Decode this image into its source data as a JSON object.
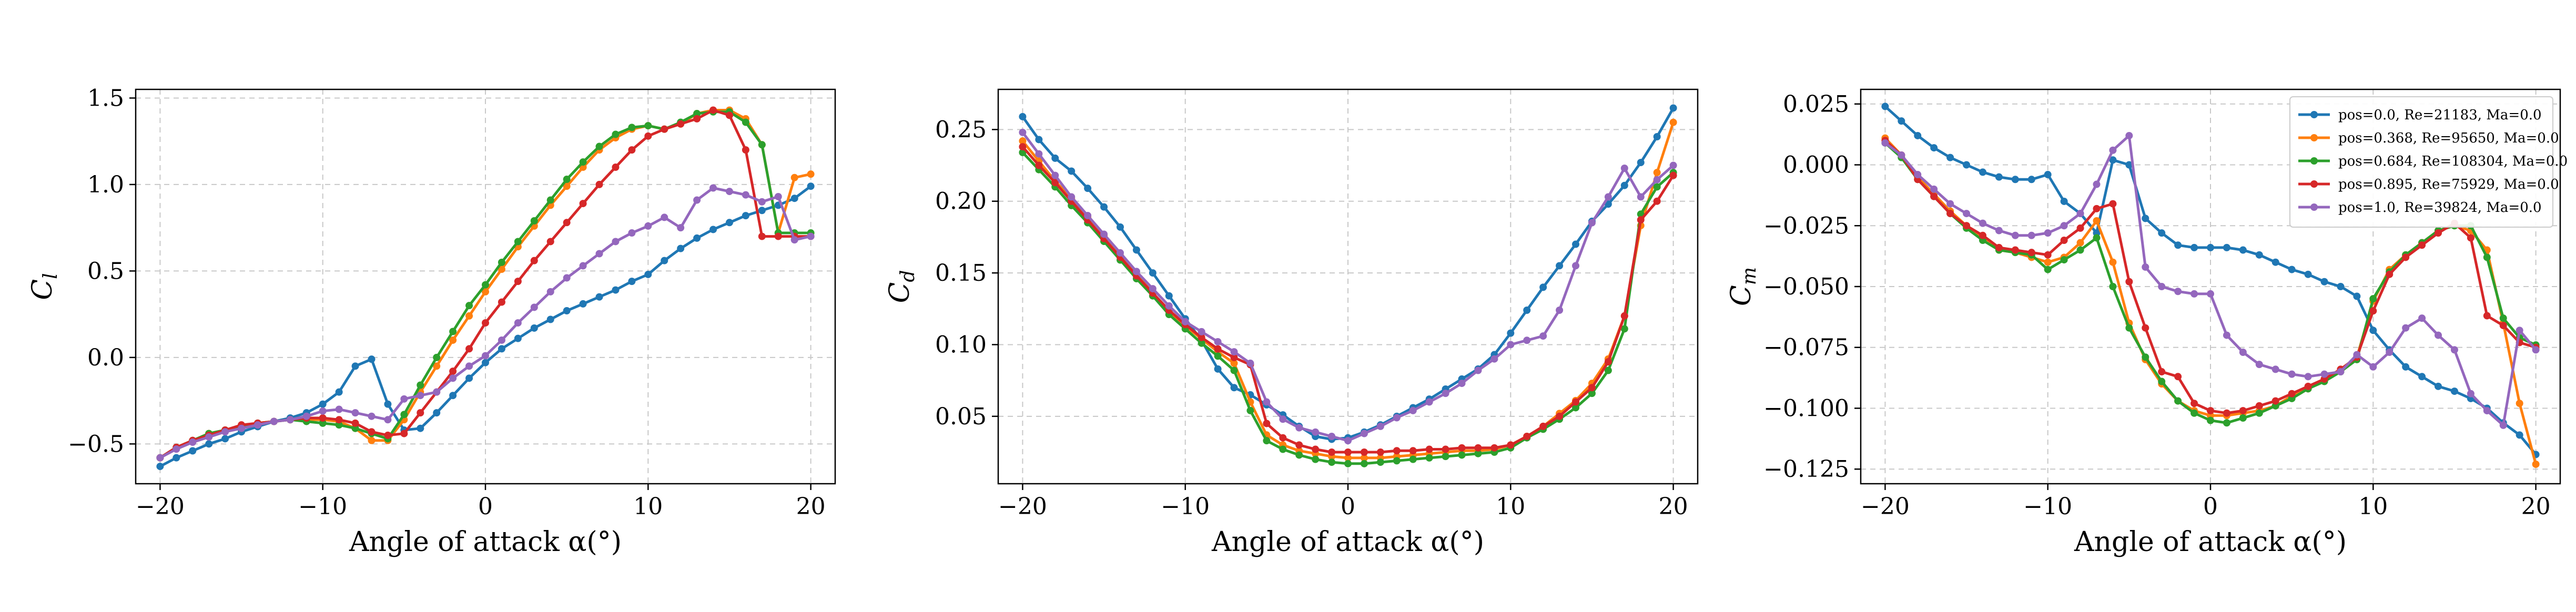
{
  "figure": {
    "colors": {
      "pos=0.0": "#1f77b4",
      "pos=0.368": "#ff7f0e",
      "pos=0.684": "#2ca02c",
      "pos=0.895": "#d62728",
      "pos=1.0": "#9467bd",
      "grid": "#c8c8c8"
    }
  },
  "chart_data": [
    {
      "type": "line",
      "xlabel": "Angle of attack α(°)",
      "ylabel": "C_l",
      "xlim": [
        -21.5,
        21.5
      ],
      "ylim": [
        -0.73,
        1.55
      ],
      "xticks": [
        -20,
        -10,
        0,
        10,
        20
      ],
      "xtick_labels": [
        "−20",
        "−10",
        "0",
        "10",
        "20"
      ],
      "yticks": [
        -0.5,
        0.0,
        0.5,
        1.0,
        1.5
      ],
      "ytick_labels": [
        "−0.5",
        "0.0",
        "0.5",
        "1.0",
        "1.5"
      ],
      "grid": true,
      "legend": "none",
      "x": [
        -20,
        -19,
        -18,
        -17,
        -16,
        -15,
        -14,
        -13,
        -12,
        -11,
        -10,
        -9,
        -8,
        -7,
        -6,
        -5,
        -4,
        -3,
        -2,
        -1,
        0,
        1,
        2,
        3,
        4,
        5,
        6,
        7,
        8,
        9,
        10,
        11,
        12,
        13,
        14,
        15,
        16,
        17,
        18,
        19,
        20
      ],
      "series": [
        {
          "key": "pos=0.0",
          "values": [
            -0.63,
            -0.58,
            -0.54,
            -0.5,
            -0.47,
            -0.43,
            -0.4,
            -0.37,
            -0.35,
            -0.32,
            -0.27,
            -0.2,
            -0.05,
            -0.01,
            -0.27,
            -0.42,
            -0.41,
            -0.32,
            -0.22,
            -0.12,
            -0.03,
            0.05,
            0.11,
            0.17,
            0.22,
            0.27,
            0.31,
            0.35,
            0.39,
            0.44,
            0.48,
            0.56,
            0.63,
            0.69,
            0.74,
            0.78,
            0.82,
            0.85,
            0.88,
            0.92,
            0.99
          ]
        },
        {
          "key": "pos=0.368",
          "values": [
            -0.58,
            -0.52,
            -0.48,
            -0.44,
            -0.42,
            -0.4,
            -0.38,
            -0.37,
            -0.36,
            -0.36,
            -0.36,
            -0.37,
            -0.41,
            -0.48,
            -0.48,
            -0.36,
            -0.2,
            -0.05,
            0.1,
            0.24,
            0.38,
            0.51,
            0.64,
            0.76,
            0.88,
            0.99,
            1.1,
            1.2,
            1.27,
            1.32,
            1.34,
            1.32,
            1.35,
            1.41,
            1.43,
            1.43,
            1.38,
            1.23,
            0.72,
            1.04,
            1.06
          ]
        },
        {
          "key": "pos=0.684",
          "values": [
            -0.58,
            -0.52,
            -0.48,
            -0.44,
            -0.42,
            -0.4,
            -0.38,
            -0.37,
            -0.36,
            -0.37,
            -0.38,
            -0.39,
            -0.41,
            -0.44,
            -0.47,
            -0.33,
            -0.16,
            0.0,
            0.15,
            0.3,
            0.42,
            0.55,
            0.67,
            0.79,
            0.91,
            1.03,
            1.13,
            1.22,
            1.29,
            1.33,
            1.34,
            1.32,
            1.36,
            1.41,
            1.42,
            1.42,
            1.36,
            1.23,
            0.72,
            0.72,
            0.72
          ]
        },
        {
          "key": "pos=0.895",
          "values": [
            -0.58,
            -0.52,
            -0.48,
            -0.45,
            -0.42,
            -0.39,
            -0.38,
            -0.37,
            -0.36,
            -0.35,
            -0.35,
            -0.36,
            -0.38,
            -0.43,
            -0.45,
            -0.44,
            -0.32,
            -0.2,
            -0.08,
            0.05,
            0.2,
            0.32,
            0.44,
            0.56,
            0.67,
            0.78,
            0.89,
            1.0,
            1.1,
            1.2,
            1.28,
            1.32,
            1.35,
            1.38,
            1.43,
            1.4,
            1.2,
            0.7,
            0.7,
            0.7,
            0.7
          ]
        },
        {
          "key": "pos=1.0",
          "values": [
            -0.58,
            -0.53,
            -0.49,
            -0.46,
            -0.43,
            -0.41,
            -0.39,
            -0.37,
            -0.36,
            -0.34,
            -0.31,
            -0.3,
            -0.32,
            -0.34,
            -0.36,
            -0.24,
            -0.22,
            -0.2,
            -0.12,
            -0.05,
            0.01,
            0.1,
            0.2,
            0.29,
            0.38,
            0.46,
            0.53,
            0.6,
            0.67,
            0.72,
            0.76,
            0.81,
            0.75,
            0.91,
            0.98,
            0.96,
            0.94,
            0.9,
            0.93,
            0.68,
            0.7
          ]
        }
      ]
    },
    {
      "type": "line",
      "xlabel": "Angle of attack α(°)",
      "ylabel": "C_d",
      "xlim": [
        -21.5,
        21.5
      ],
      "ylim": [
        0.003,
        0.278
      ],
      "xticks": [
        -20,
        -10,
        0,
        10,
        20
      ],
      "xtick_labels": [
        "−20",
        "−10",
        "0",
        "10",
        "20"
      ],
      "yticks": [
        0.05,
        0.1,
        0.15,
        0.2,
        0.25
      ],
      "ytick_labels": [
        "0.05",
        "0.10",
        "0.15",
        "0.20",
        "0.25"
      ],
      "grid": true,
      "legend": "none",
      "x": [
        -20,
        -19,
        -18,
        -17,
        -16,
        -15,
        -14,
        -13,
        -12,
        -11,
        -10,
        -9,
        -8,
        -7,
        -6,
        -5,
        -4,
        -3,
        -2,
        -1,
        0,
        1,
        2,
        3,
        4,
        5,
        6,
        7,
        8,
        9,
        10,
        11,
        12,
        13,
        14,
        15,
        16,
        17,
        18,
        19,
        20
      ],
      "series": [
        {
          "key": "pos=0.0",
          "values": [
            0.259,
            0.243,
            0.23,
            0.221,
            0.209,
            0.196,
            0.182,
            0.166,
            0.15,
            0.134,
            0.118,
            0.103,
            0.083,
            0.07,
            0.065,
            0.058,
            0.051,
            0.043,
            0.036,
            0.034,
            0.035,
            0.039,
            0.044,
            0.05,
            0.056,
            0.062,
            0.069,
            0.076,
            0.083,
            0.093,
            0.108,
            0.124,
            0.14,
            0.155,
            0.17,
            0.186,
            0.198,
            0.211,
            0.227,
            0.245,
            0.265
          ]
        },
        {
          "key": "pos=0.368",
          "values": [
            0.242,
            0.228,
            0.214,
            0.202,
            0.189,
            0.176,
            0.162,
            0.149,
            0.136,
            0.123,
            0.113,
            0.104,
            0.095,
            0.087,
            0.06,
            0.037,
            0.03,
            0.026,
            0.024,
            0.022,
            0.021,
            0.021,
            0.021,
            0.022,
            0.023,
            0.024,
            0.025,
            0.026,
            0.026,
            0.027,
            0.03,
            0.036,
            0.043,
            0.052,
            0.061,
            0.073,
            0.09,
            0.12,
            0.183,
            0.22,
            0.255
          ]
        },
        {
          "key": "pos=0.684",
          "values": [
            0.234,
            0.222,
            0.21,
            0.197,
            0.185,
            0.172,
            0.159,
            0.146,
            0.134,
            0.121,
            0.111,
            0.101,
            0.092,
            0.082,
            0.054,
            0.033,
            0.027,
            0.023,
            0.02,
            0.018,
            0.017,
            0.017,
            0.018,
            0.019,
            0.02,
            0.021,
            0.022,
            0.023,
            0.024,
            0.025,
            0.028,
            0.035,
            0.041,
            0.048,
            0.056,
            0.066,
            0.082,
            0.111,
            0.191,
            0.21,
            0.22
          ]
        },
        {
          "key": "pos=0.895",
          "values": [
            0.238,
            0.225,
            0.213,
            0.2,
            0.187,
            0.174,
            0.161,
            0.148,
            0.136,
            0.124,
            0.114,
            0.105,
            0.097,
            0.091,
            0.086,
            0.045,
            0.035,
            0.03,
            0.027,
            0.025,
            0.025,
            0.025,
            0.025,
            0.026,
            0.026,
            0.027,
            0.027,
            0.028,
            0.028,
            0.028,
            0.03,
            0.036,
            0.043,
            0.05,
            0.06,
            0.07,
            0.088,
            0.12,
            0.187,
            0.2,
            0.218
          ]
        },
        {
          "key": "pos=1.0",
          "values": [
            0.248,
            0.233,
            0.218,
            0.203,
            0.19,
            0.177,
            0.164,
            0.151,
            0.139,
            0.127,
            0.116,
            0.109,
            0.102,
            0.095,
            0.087,
            0.06,
            0.048,
            0.042,
            0.039,
            0.036,
            0.033,
            0.038,
            0.043,
            0.049,
            0.054,
            0.06,
            0.066,
            0.073,
            0.082,
            0.09,
            0.1,
            0.103,
            0.106,
            0.124,
            0.155,
            0.185,
            0.203,
            0.223,
            0.203,
            0.215,
            0.225
          ]
        }
      ]
    },
    {
      "type": "line",
      "xlabel": "Angle of attack α(°)",
      "ylabel": "C_m",
      "xlim": [
        -21.5,
        21.5
      ],
      "ylim": [
        -0.131,
        0.031
      ],
      "xticks": [
        -20,
        -10,
        0,
        10,
        20
      ],
      "xtick_labels": [
        "−20",
        "−10",
        "0",
        "10",
        "20"
      ],
      "yticks": [
        0.025,
        0.0,
        -0.025,
        -0.05,
        -0.075,
        -0.1,
        -0.125
      ],
      "ytick_labels": [
        "0.025",
        "0.000",
        "−0.025",
        "−0.050",
        "−0.075",
        "−0.100",
        "−0.125"
      ],
      "grid": true,
      "legend": "top-right",
      "x": [
        -20,
        -19,
        -18,
        -17,
        -16,
        -15,
        -14,
        -13,
        -12,
        -11,
        -10,
        -9,
        -8,
        -7,
        -6,
        -5,
        -4,
        -3,
        -2,
        -1,
        0,
        1,
        2,
        3,
        4,
        5,
        6,
        7,
        8,
        9,
        10,
        11,
        12,
        13,
        14,
        15,
        16,
        17,
        18,
        19,
        20
      ],
      "series": [
        {
          "key": "pos=0.0",
          "name": "pos=0.0, Re=21183, Ma=0.0",
          "values": [
            0.024,
            0.018,
            0.012,
            0.007,
            0.003,
            0.0,
            -0.003,
            -0.005,
            -0.006,
            -0.006,
            -0.004,
            -0.015,
            -0.02,
            -0.028,
            0.002,
            0.0,
            -0.022,
            -0.028,
            -0.033,
            -0.034,
            -0.034,
            -0.034,
            -0.035,
            -0.037,
            -0.04,
            -0.043,
            -0.045,
            -0.048,
            -0.05,
            -0.054,
            -0.068,
            -0.076,
            -0.083,
            -0.087,
            -0.091,
            -0.093,
            -0.096,
            -0.1,
            -0.106,
            -0.111,
            -0.119
          ]
        },
        {
          "key": "pos=0.368",
          "name": "pos=0.368, Re=95650, Ma=0.0",
          "values": [
            0.011,
            0.004,
            -0.005,
            -0.012,
            -0.019,
            -0.025,
            -0.03,
            -0.035,
            -0.036,
            -0.038,
            -0.04,
            -0.038,
            -0.032,
            -0.023,
            -0.04,
            -0.065,
            -0.08,
            -0.09,
            -0.097,
            -0.101,
            -0.103,
            -0.103,
            -0.102,
            -0.101,
            -0.099,
            -0.095,
            -0.092,
            -0.088,
            -0.084,
            -0.079,
            -0.056,
            -0.043,
            -0.037,
            -0.032,
            -0.027,
            -0.025,
            -0.027,
            -0.035,
            -0.065,
            -0.098,
            -0.123
          ]
        },
        {
          "key": "pos=0.684",
          "name": "pos=0.684, Re=108304, Ma=0.0",
          "values": [
            0.009,
            0.003,
            -0.006,
            -0.013,
            -0.02,
            -0.026,
            -0.031,
            -0.035,
            -0.036,
            -0.037,
            -0.043,
            -0.039,
            -0.035,
            -0.03,
            -0.05,
            -0.067,
            -0.079,
            -0.089,
            -0.097,
            -0.102,
            -0.105,
            -0.106,
            -0.104,
            -0.102,
            -0.099,
            -0.096,
            -0.092,
            -0.089,
            -0.085,
            -0.08,
            -0.055,
            -0.044,
            -0.037,
            -0.032,
            -0.027,
            -0.025,
            -0.025,
            -0.038,
            -0.063,
            -0.071,
            -0.074
          ]
        },
        {
          "key": "pos=0.895",
          "name": "pos=0.895, Re=75929, Ma=0.0",
          "values": [
            0.01,
            0.004,
            -0.006,
            -0.013,
            -0.02,
            -0.025,
            -0.029,
            -0.034,
            -0.035,
            -0.036,
            -0.037,
            -0.031,
            -0.026,
            -0.018,
            -0.016,
            -0.048,
            -0.067,
            -0.085,
            -0.087,
            -0.098,
            -0.101,
            -0.102,
            -0.101,
            -0.099,
            -0.097,
            -0.094,
            -0.091,
            -0.088,
            -0.084,
            -0.079,
            -0.06,
            -0.045,
            -0.038,
            -0.033,
            -0.028,
            -0.024,
            -0.03,
            -0.062,
            -0.066,
            -0.073,
            -0.075
          ]
        },
        {
          "key": "pos=1.0",
          "name": "pos=1.0, Re=39824, Ma=0.0",
          "values": [
            0.009,
            0.004,
            -0.004,
            -0.01,
            -0.016,
            -0.02,
            -0.024,
            -0.027,
            -0.029,
            -0.029,
            -0.028,
            -0.025,
            -0.02,
            -0.008,
            0.006,
            0.012,
            -0.042,
            -0.05,
            -0.052,
            -0.053,
            -0.053,
            -0.07,
            -0.077,
            -0.082,
            -0.084,
            -0.086,
            -0.087,
            -0.086,
            -0.085,
            -0.078,
            -0.083,
            -0.077,
            -0.067,
            -0.063,
            -0.07,
            -0.076,
            -0.094,
            -0.101,
            -0.107,
            -0.068,
            -0.076
          ]
        }
      ]
    }
  ]
}
